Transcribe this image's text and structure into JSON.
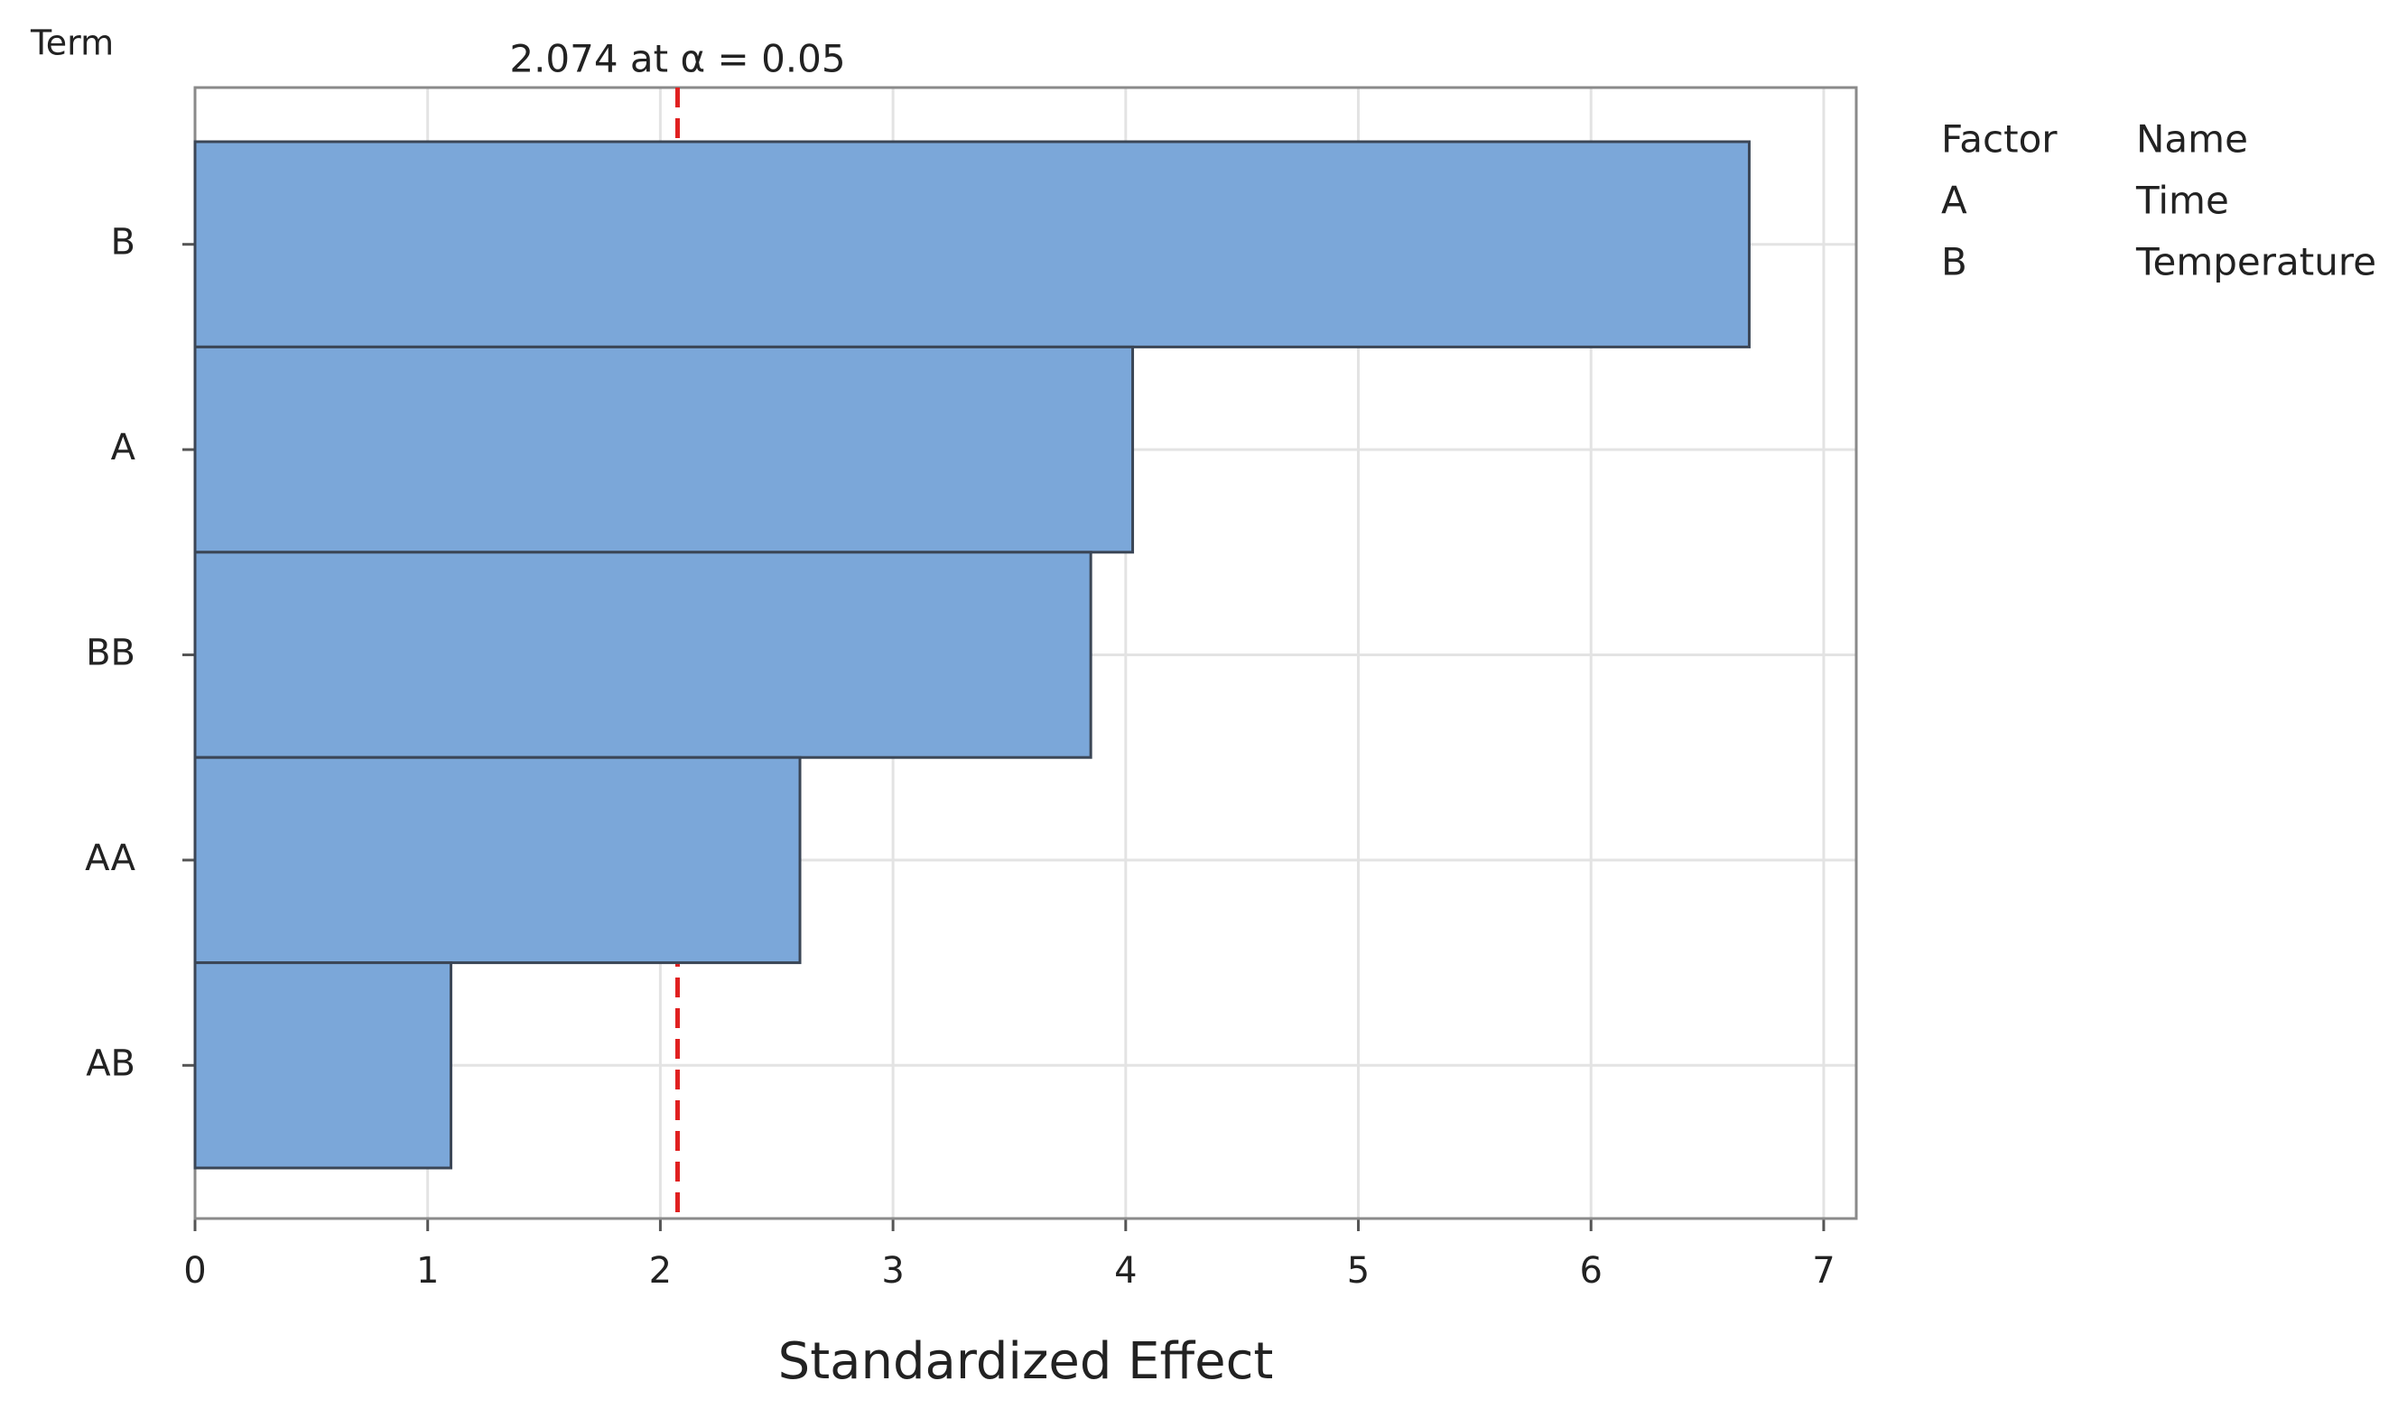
{
  "chart_data": {
    "type": "barh",
    "y_label": "Term",
    "x_label": "Standardized Effect",
    "categories": [
      "B",
      "A",
      "BB",
      "AA",
      "AB"
    ],
    "values": [
      6.68,
      4.03,
      3.85,
      2.6,
      1.1
    ],
    "color": "#7ba7d9",
    "xlim": [
      0,
      7.14
    ],
    "xticks": [
      0,
      1,
      2,
      3,
      4,
      5,
      6,
      7
    ],
    "grid": true,
    "reference": {
      "value": 2.074,
      "label": "2.074 at α = 0.05",
      "color": "#e02020"
    },
    "factor_table": {
      "header": [
        "Factor",
        "Name"
      ],
      "rows": [
        [
          "A",
          "Time"
        ],
        [
          "B",
          "Temperature"
        ]
      ]
    }
  }
}
